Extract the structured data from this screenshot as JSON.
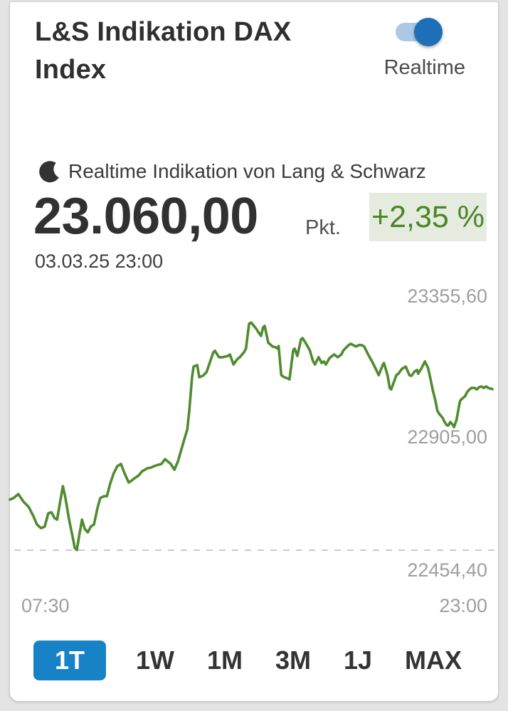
{
  "header": {
    "title": "L&S Indikation DAX Index",
    "realtime_toggle": {
      "label": "Realtime",
      "state": "on"
    }
  },
  "quote": {
    "source_note": "Realtime Indikation von Lang & Schwarz",
    "price": "23.060,00",
    "unit": "Pkt.",
    "change_percent": "+2,35 %",
    "timestamp": "03.03.25 23:00"
  },
  "periods": {
    "buttons": [
      {
        "label": "1T",
        "active": true
      },
      {
        "label": "1W",
        "active": false
      },
      {
        "label": "1M",
        "active": false
      },
      {
        "label": "3M",
        "active": false
      },
      {
        "label": "1J",
        "active": false
      },
      {
        "label": "MAX",
        "active": false
      }
    ]
  },
  "colors": {
    "accent_blue": "#1783c6",
    "toggle_thumb": "#1d70b8",
    "toggle_track": "#abc9e7",
    "positive_green": "#4a8527",
    "badge_background": "#e6ebe0",
    "chart_line": "#4e8c2e",
    "reference_dash": "#c9c9c9",
    "axis_text": "#9e9e9e"
  },
  "chart_data": {
    "type": "line",
    "title": "L&S Indikation DAX Index intraday",
    "grid": "none",
    "legend": "none",
    "y_axis_side": "right",
    "x_range_minutes": 930,
    "x_ticks": [
      {
        "label": "07:30",
        "position": "start"
      },
      {
        "label": "23:00",
        "position": "end"
      }
    ],
    "y_ticks": [
      {
        "label": "23355,60",
        "value": 23355.6
      },
      {
        "label": "22905,00",
        "value": 22905.0
      },
      {
        "label": "22454,40",
        "value": 22454.4
      }
    ],
    "ylim": [
      22340,
      23470
    ],
    "reference_line": {
      "style": "dashed",
      "value": 22530.5,
      "estimated": true
    },
    "line_color": "#4e8c2e",
    "series": [
      {
        "name": "L&S Indikation DAX Index",
        "x_unit": "minutes_after_07:30",
        "points": [
          [
            0,
            22697
          ],
          [
            7,
            22702
          ],
          [
            16,
            22715
          ],
          [
            26,
            22690
          ],
          [
            36,
            22673
          ],
          [
            45,
            22643
          ],
          [
            52,
            22615
          ],
          [
            60,
            22603
          ],
          [
            67,
            22608
          ],
          [
            74,
            22652
          ],
          [
            80,
            22655
          ],
          [
            86,
            22636
          ],
          [
            91,
            22631
          ],
          [
            97,
            22692
          ],
          [
            102,
            22741
          ],
          [
            107,
            22702
          ],
          [
            114,
            22631
          ],
          [
            121,
            22573
          ],
          [
            125,
            22538
          ],
          [
            129,
            22531
          ],
          [
            134,
            22584
          ],
          [
            139,
            22631
          ],
          [
            144,
            22601
          ],
          [
            150,
            22589
          ],
          [
            156,
            22608
          ],
          [
            162,
            22615
          ],
          [
            169,
            22671
          ],
          [
            174,
            22702
          ],
          [
            181,
            22708
          ],
          [
            187,
            22708
          ],
          [
            193,
            22748
          ],
          [
            200,
            22783
          ],
          [
            207,
            22807
          ],
          [
            214,
            22814
          ],
          [
            221,
            22783
          ],
          [
            229,
            22753
          ],
          [
            235,
            22760
          ],
          [
            240,
            22767
          ],
          [
            248,
            22776
          ],
          [
            255,
            22790
          ],
          [
            265,
            22800
          ],
          [
            272,
            22802
          ],
          [
            278,
            22807
          ],
          [
            285,
            22811
          ],
          [
            292,
            22814
          ],
          [
            299,
            22830
          ],
          [
            310,
            22814
          ],
          [
            317,
            22795
          ],
          [
            324,
            22823
          ],
          [
            331,
            22865
          ],
          [
            337,
            22900
          ],
          [
            342,
            22928
          ],
          [
            346,
            22994
          ],
          [
            348,
            23036
          ],
          [
            351,
            23099
          ],
          [
            354,
            23134
          ],
          [
            361,
            23139
          ],
          [
            365,
            23099
          ],
          [
            372,
            23104
          ],
          [
            379,
            23116
          ],
          [
            385,
            23146
          ],
          [
            392,
            23181
          ],
          [
            395,
            23186
          ],
          [
            403,
            23165
          ],
          [
            410,
            23165
          ],
          [
            420,
            23169
          ],
          [
            424,
            23174
          ],
          [
            431,
            23141
          ],
          [
            438,
            23158
          ],
          [
            443,
            23165
          ],
          [
            451,
            23181
          ],
          [
            455,
            23193
          ],
          [
            461,
            23275
          ],
          [
            465,
            23279
          ],
          [
            475,
            23258
          ],
          [
            479,
            23247
          ],
          [
            484,
            23235
          ],
          [
            488,
            23263
          ],
          [
            491,
            23268
          ],
          [
            498,
            23212
          ],
          [
            502,
            23207
          ],
          [
            506,
            23200
          ],
          [
            512,
            23198
          ],
          [
            516,
            23193
          ],
          [
            518,
            23202
          ],
          [
            523,
            23106
          ],
          [
            529,
            23099
          ],
          [
            536,
            23095
          ],
          [
            539,
            23092
          ],
          [
            546,
            23188
          ],
          [
            549,
            23193
          ],
          [
            554,
            23169
          ],
          [
            561,
            23223
          ],
          [
            564,
            23228
          ],
          [
            571,
            23209
          ],
          [
            578,
            23188
          ],
          [
            584,
            23153
          ],
          [
            588,
            23141
          ],
          [
            595,
            23165
          ],
          [
            601,
            23146
          ],
          [
            605,
            23151
          ],
          [
            609,
            23141
          ],
          [
            616,
            23162
          ],
          [
            625,
            23174
          ],
          [
            632,
            23165
          ],
          [
            639,
            23174
          ],
          [
            643,
            23188
          ],
          [
            653,
            23205
          ],
          [
            657,
            23209
          ],
          [
            667,
            23200
          ],
          [
            673,
            23205
          ],
          [
            678,
            23205
          ],
          [
            683,
            23200
          ],
          [
            690,
            23176
          ],
          [
            698,
            23151
          ],
          [
            705,
            23127
          ],
          [
            711,
            23106
          ],
          [
            719,
            23141
          ],
          [
            721,
            23146
          ],
          [
            728,
            23106
          ],
          [
            732,
            23064
          ],
          [
            735,
            23059
          ],
          [
            745,
            23106
          ],
          [
            749,
            23111
          ],
          [
            756,
            23127
          ],
          [
            763,
            23134
          ],
          [
            770,
            23106
          ],
          [
            774,
            23104
          ],
          [
            780,
            23118
          ],
          [
            785,
            23123
          ],
          [
            787,
            23111
          ],
          [
            793,
            23127
          ],
          [
            800,
            23151
          ],
          [
            806,
            23130
          ],
          [
            811,
            23092
          ],
          [
            815,
            23057
          ],
          [
            820,
            23024
          ],
          [
            824,
            22989
          ],
          [
            828,
            22978
          ],
          [
            834,
            22966
          ],
          [
            838,
            22952
          ],
          [
            842,
            22942
          ],
          [
            845,
            22940
          ],
          [
            849,
            22952
          ],
          [
            855,
            22940
          ],
          [
            856,
            22935
          ],
          [
            861,
            22959
          ],
          [
            866,
            23006
          ],
          [
            868,
            23022
          ],
          [
            872,
            23029
          ],
          [
            877,
            23036
          ],
          [
            882,
            23052
          ],
          [
            886,
            23059
          ],
          [
            890,
            23064
          ],
          [
            896,
            23064
          ],
          [
            900,
            23059
          ],
          [
            904,
            23066
          ],
          [
            909,
            23069
          ],
          [
            913,
            23064
          ],
          [
            918,
            23069
          ],
          [
            922,
            23064
          ],
          [
            926,
            23062
          ],
          [
            930,
            23060
          ]
        ]
      }
    ]
  }
}
